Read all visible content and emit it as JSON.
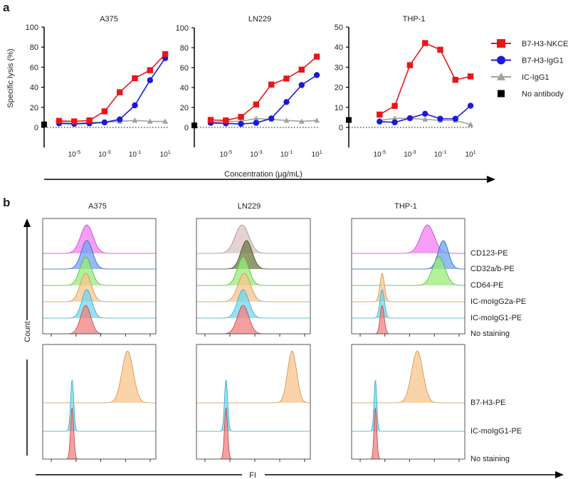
{
  "panel_a_label": "a",
  "panel_b_label": "b",
  "chart_data": [
    {
      "type": "line",
      "title": "A375",
      "ylabel": "Specific lysis (%)",
      "xlabel": "Concentration (µg/mL)",
      "x_scale": "log",
      "ylim": [
        -20,
        100
      ],
      "yticks": [
        0,
        20,
        40,
        60,
        80,
        100
      ],
      "xtick_labels": [
        "10^-5",
        "10^-3",
        "10^-1",
        "10^1"
      ],
      "xtick_values": [
        1e-05,
        0.001,
        0.1,
        10
      ],
      "x": [
        1e-06,
        1e-05,
        0.0001,
        0.001,
        0.01,
        0.1,
        1,
        10
      ],
      "series": [
        {
          "name": "B7-H3-NKCE",
          "values": [
            6.5,
            6,
            7,
            16,
            35,
            49,
            57,
            73
          ]
        },
        {
          "name": "B7-H3-IgG1",
          "values": [
            4,
            3.5,
            4,
            5,
            8,
            22,
            47,
            69
          ]
        },
        {
          "name": "IC-IgG1",
          "values": [
            5,
            4,
            5,
            5,
            6,
            7,
            6,
            6
          ]
        }
      ],
      "no_antibody": 3
    },
    {
      "type": "line",
      "title": "LN229",
      "x_scale": "log",
      "ylim": [
        -20,
        100
      ],
      "yticks": [
        0,
        20,
        40,
        60,
        80,
        100
      ],
      "xtick_labels": [
        "10^-5",
        "10^-3",
        "10^-1",
        "10^1"
      ],
      "xtick_values": [
        1e-05,
        0.001,
        0.1,
        10
      ],
      "x": [
        1e-06,
        1e-05,
        0.0001,
        0.001,
        0.01,
        0.1,
        1,
        10
      ],
      "series": [
        {
          "name": "B7-H3-NKCE",
          "values": [
            7.5,
            7,
            10.5,
            23,
            43,
            49,
            58,
            71
          ]
        },
        {
          "name": "B7-H3-IgG1",
          "values": [
            4.5,
            4,
            3.5,
            4.5,
            9,
            25.5,
            42.5,
            52.5
          ]
        },
        {
          "name": "IC-IgG1",
          "values": [
            5,
            6,
            6,
            9,
            8,
            7,
            6,
            7
          ]
        }
      ],
      "no_antibody": 2
    },
    {
      "type": "line",
      "title": "THP-1",
      "x_scale": "log",
      "ylim": [
        -10,
        50
      ],
      "yticks": [
        0,
        10,
        20,
        30,
        40,
        50
      ],
      "xtick_labels": [
        "10^-5",
        "10^-3",
        "10^-1",
        "10^1"
      ],
      "xtick_values": [
        1e-05,
        0.001,
        0.1,
        10
      ],
      "x": [
        1e-05,
        0.0001,
        0.001,
        0.01,
        0.1,
        1,
        10
      ],
      "series": [
        {
          "name": "B7-H3-NKCE",
          "values": [
            6.4,
            10.7,
            31,
            42,
            38.7,
            23.7,
            25.4
          ]
        },
        {
          "name": "B7-H3-IgG1",
          "values": [
            2.9,
            2.5,
            4.6,
            6.8,
            4.3,
            4.3,
            10.8
          ]
        },
        {
          "name": "IC-IgG1",
          "values": [
            3.5,
            4.5,
            4.5,
            4,
            3.5,
            3.5,
            1.5
          ]
        }
      ],
      "no_antibody": 3.7
    },
    {
      "type": "histogram",
      "ylabel": "Count",
      "xlabel": "FI",
      "titles": [
        "A375",
        "LN229",
        "THP-1"
      ],
      "top_rows": [
        "CD123-PE",
        "CD32a/b-PE",
        "CD64-PE",
        "IC-moIgG2a-PE",
        "IC-moIgG1-PE",
        "No staining"
      ],
      "bottom_rows": [
        "B7-H3-PE",
        "IC-moIgG1-PE",
        "No staining"
      ],
      "note": "peak = relative FI position (0-1 of axis), width = relative spread",
      "top_peaks": [
        [
          {
            "peak": 0.39,
            "width": 0.055
          },
          {
            "peak": 0.39,
            "width": 0.05
          },
          {
            "peak": 0.38,
            "width": 0.05
          },
          {
            "peak": 0.38,
            "width": 0.05
          },
          {
            "peak": 0.39,
            "width": 0.045
          },
          {
            "peak": 0.38,
            "width": 0.045
          }
        ],
        [
          {
            "peak": 0.4,
            "width": 0.06
          },
          {
            "peak": 0.44,
            "width": 0.05
          },
          {
            "peak": 0.41,
            "width": 0.05
          },
          {
            "peak": 0.42,
            "width": 0.055
          },
          {
            "peak": 0.41,
            "width": 0.05
          },
          {
            "peak": 0.41,
            "width": 0.05
          }
        ],
        [
          {
            "peak": 0.67,
            "width": 0.06
          },
          {
            "peak": 0.81,
            "width": 0.045
          },
          {
            "peak": 0.77,
            "width": 0.055
          },
          {
            "peak": 0.27,
            "width": 0.02
          },
          {
            "peak": 0.27,
            "width": 0.02
          },
          {
            "peak": 0.27,
            "width": 0.018
          }
        ]
      ],
      "bottom_peaks": [
        [
          {
            "peak": 0.75,
            "width": 0.05
          },
          {
            "peak": 0.26,
            "width": 0.014
          },
          {
            "peak": 0.26,
            "width": 0.014
          }
        ],
        [
          {
            "peak": 0.84,
            "width": 0.04
          },
          {
            "peak": 0.26,
            "width": 0.014
          },
          {
            "peak": 0.26,
            "width": 0.014
          }
        ],
        [
          {
            "peak": 0.58,
            "width": 0.05
          },
          {
            "peak": 0.21,
            "width": 0.012
          },
          {
            "peak": 0.21,
            "width": 0.012
          }
        ]
      ]
    }
  ],
  "legend": [
    {
      "label": "B7-H3-NKCE",
      "color": "#e8161b",
      "marker": "square"
    },
    {
      "label": "B7-H3-IgG1",
      "color": "#1a1adc",
      "marker": "circle"
    },
    {
      "label": "IC-IgG1",
      "color": "#a0a0a0",
      "marker": "triangle"
    },
    {
      "label": "No antibody",
      "color": "#000000",
      "marker": "square"
    }
  ],
  "hist_colors": {
    "top": [
      [
        "#f27ef2",
        "#c040c0"
      ],
      [
        "#6fa4f0",
        "#2060c0"
      ],
      [
        "#98ec78",
        "#50b040"
      ],
      [
        "#f8c48c",
        "#d09050"
      ],
      [
        "#70d8f0",
        "#30a8c8"
      ],
      [
        "#f08080",
        "#c04040"
      ]
    ],
    "top_ln229": [
      [
        "#dcc4c4",
        "#a08888"
      ],
      [
        "#6b7a40",
        "#3a4a20"
      ]
    ],
    "bottom": [
      [
        "#f8c48c",
        "#d09050"
      ],
      [
        "#70d8f0",
        "#30a8c8"
      ],
      [
        "#f08080",
        "#c04040"
      ]
    ]
  }
}
